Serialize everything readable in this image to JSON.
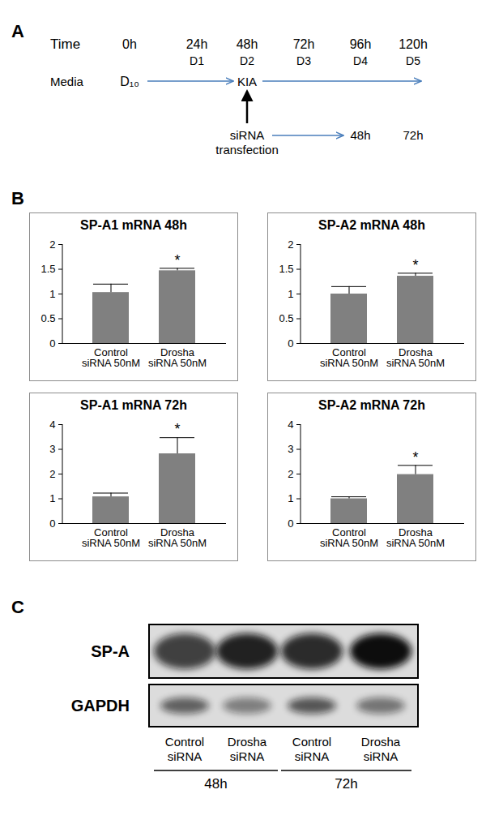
{
  "panels": [
    "A",
    "B",
    "C"
  ],
  "timeline": {
    "row_labels": {
      "time": "Time",
      "media": "Media"
    },
    "times": [
      "0h",
      "24h",
      "48h",
      "72h",
      "96h",
      "120h"
    ],
    "days": [
      null,
      "D1",
      "D2",
      "D3",
      "D4",
      "D5"
    ],
    "media": [
      "D₁₀",
      "KIA"
    ],
    "treatment": [
      "siRNA",
      "transfection"
    ],
    "after": [
      "48h",
      "72h"
    ]
  },
  "chart_data": [
    {
      "type": "bar",
      "title": "SP-A1 mRNA 48h",
      "categories": [
        "Control\nsiRNA 50nM",
        "Drosha\nsiRNA 50nM"
      ],
      "values": [
        1.03,
        1.47
      ],
      "errors": [
        0.17,
        0.05
      ],
      "significance": [
        null,
        "*"
      ],
      "color": "#808080",
      "ylim": [
        0,
        2
      ],
      "yticks": [
        0,
        0.5,
        1,
        1.5,
        2
      ]
    },
    {
      "type": "bar",
      "title": "SP-A2 mRNA 48h",
      "categories": [
        "Control\nsiRNA 50nM",
        "Drosha\nsiRNA 50nM"
      ],
      "values": [
        1.0,
        1.36
      ],
      "errors": [
        0.15,
        0.06
      ],
      "significance": [
        null,
        "*"
      ],
      "color": "#808080",
      "ylim": [
        0,
        2
      ],
      "yticks": [
        0,
        0.5,
        1,
        1.5,
        2
      ]
    },
    {
      "type": "bar",
      "title": "SP-A1 mRNA 72h",
      "categories": [
        "Control\nsiRNA 50nM",
        "Drosha\nsiRNA 50nM"
      ],
      "values": [
        1.08,
        2.82
      ],
      "errors": [
        0.15,
        0.65
      ],
      "significance": [
        null,
        "*"
      ],
      "color": "#808080",
      "ylim": [
        0,
        4
      ],
      "yticks": [
        0,
        1,
        2,
        3,
        4
      ]
    },
    {
      "type": "bar",
      "title": "SP-A2 mRNA 72h",
      "categories": [
        "Control\nsiRNA 50nM",
        "Drosha\nsiRNA 50nM"
      ],
      "values": [
        1.0,
        1.98
      ],
      "errors": [
        0.08,
        0.37
      ],
      "significance": [
        null,
        "*"
      ],
      "color": "#808080",
      "ylim": [
        0,
        4
      ],
      "yticks": [
        0,
        1,
        2,
        3,
        4
      ]
    }
  ],
  "blot": {
    "rows": [
      {
        "label": "SP-A",
        "intensity": [
          0.75,
          0.9,
          0.85,
          1.0
        ]
      },
      {
        "label": "GAPDH",
        "intensity": [
          0.6,
          0.45,
          0.65,
          0.5
        ]
      }
    ],
    "lanes": [
      "Control\nsiRNA",
      "Drosha\nsiRNA",
      "Control\nsiRNA",
      "Drosha\nsiRNA"
    ],
    "groups": [
      "48h",
      "72h"
    ]
  }
}
